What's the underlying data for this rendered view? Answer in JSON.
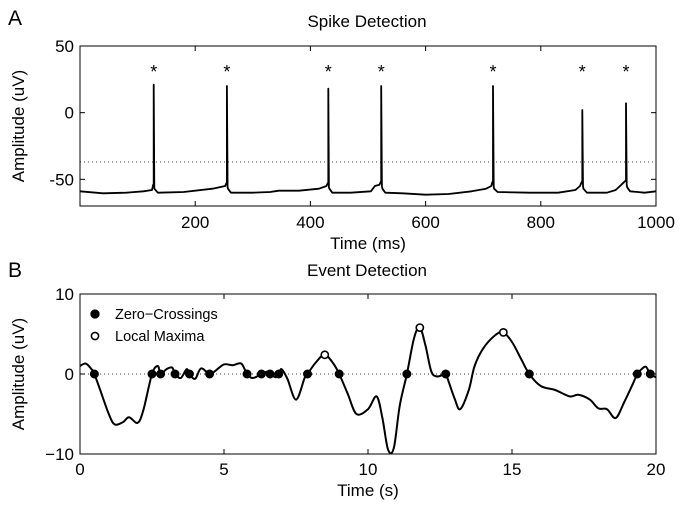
{
  "chart_data": [
    {
      "panel_label": "A",
      "type": "line",
      "title": "Spike Detection",
      "xlabel": "Time (ms)",
      "ylabel": "Amplitude (uV)",
      "xlim": [
        0,
        1000
      ],
      "ylim": [
        -70,
        50
      ],
      "xticks": [
        200,
        400,
        600,
        800,
        1000
      ],
      "yticks": [
        50,
        0,
        -50
      ],
      "threshold": -37,
      "baseline_points": [
        [
          0,
          -59
        ],
        [
          40,
          -60.5
        ],
        [
          80,
          -60
        ],
        [
          110,
          -59
        ],
        [
          125,
          -58
        ],
        [
          128,
          -54
        ],
        [
          129,
          -56
        ],
        [
          135,
          -60
        ],
        [
          180,
          -59.5
        ],
        [
          230,
          -57
        ],
        [
          252,
          -55
        ],
        [
          255,
          -53
        ],
        [
          257,
          -57
        ],
        [
          262,
          -60
        ],
        [
          300,
          -60
        ],
        [
          330,
          -59.5
        ],
        [
          345,
          -58.5
        ],
        [
          380,
          -58.5
        ],
        [
          415,
          -57
        ],
        [
          428,
          -55
        ],
        [
          431,
          -53
        ],
        [
          433,
          -57
        ],
        [
          438,
          -60
        ],
        [
          470,
          -60
        ],
        [
          505,
          -59
        ],
        [
          512,
          -55
        ],
        [
          520,
          -54
        ],
        [
          523,
          -52
        ],
        [
          525,
          -57
        ],
        [
          530,
          -60
        ],
        [
          560,
          -60.5
        ],
        [
          600,
          -61.5
        ],
        [
          640,
          -61
        ],
        [
          680,
          -59
        ],
        [
          705,
          -57
        ],
        [
          714,
          -55
        ],
        [
          717,
          -52
        ],
        [
          719,
          -57
        ],
        [
          725,
          -59.5
        ],
        [
          780,
          -60
        ],
        [
          830,
          -60
        ],
        [
          860,
          -58
        ],
        [
          868,
          -55
        ],
        [
          872,
          -52
        ],
        [
          874,
          -57
        ],
        [
          880,
          -60
        ],
        [
          915,
          -60
        ],
        [
          930,
          -58
        ],
        [
          940,
          -54
        ],
        [
          948,
          -51
        ],
        [
          950,
          -56
        ],
        [
          955,
          -59
        ],
        [
          980,
          -60
        ],
        [
          1000,
          -59
        ]
      ],
      "spikes": [
        {
          "time": 128,
          "peak": 21
        },
        {
          "time": 255,
          "peak": 20
        },
        {
          "time": 431,
          "peak": 18
        },
        {
          "time": 523,
          "peak": 20
        },
        {
          "time": 717,
          "peak": 20
        },
        {
          "time": 872,
          "peak": 2
        },
        {
          "time": 948,
          "peak": 7
        }
      ],
      "spike_marker": "*"
    },
    {
      "panel_label": "B",
      "type": "line",
      "title": "Event Detection",
      "xlabel": "Time (s)",
      "ylabel": "Amplitude (uV)",
      "xlim": [
        0,
        20
      ],
      "ylim": [
        -10,
        10
      ],
      "xticks": [
        0,
        5,
        10,
        15,
        20
      ],
      "yticks": [
        10,
        0,
        -10
      ],
      "legend": {
        "placement": "top-left",
        "entries": [
          "Zero−Crossings",
          "Local Maxima"
        ]
      },
      "signal": [
        [
          0,
          1.0
        ],
        [
          0.2,
          1.3
        ],
        [
          0.4,
          0.6
        ],
        [
          0.5,
          0
        ],
        [
          0.7,
          -2
        ],
        [
          1.0,
          -5
        ],
        [
          1.2,
          -6.3
        ],
        [
          1.5,
          -6.0
        ],
        [
          1.7,
          -5.4
        ],
        [
          2.0,
          -6.1
        ],
        [
          2.2,
          -4.5
        ],
        [
          2.5,
          0
        ],
        [
          2.7,
          1.0
        ],
        [
          2.8,
          0
        ],
        [
          3.0,
          0.6
        ],
        [
          3.2,
          0.8
        ],
        [
          3.3,
          0
        ],
        [
          3.5,
          -0.5
        ],
        [
          3.7,
          0.6
        ],
        [
          3.8,
          0
        ],
        [
          4.0,
          -0.6
        ],
        [
          4.2,
          0.7
        ],
        [
          4.5,
          0
        ],
        [
          4.7,
          0.4
        ],
        [
          5.0,
          1.2
        ],
        [
          5.3,
          1.1
        ],
        [
          5.6,
          1.3
        ],
        [
          5.8,
          0
        ],
        [
          6.0,
          -0.5
        ],
        [
          6.3,
          0
        ],
        [
          6.5,
          0.3
        ],
        [
          6.6,
          0
        ],
        [
          6.8,
          -0.4
        ],
        [
          6.9,
          0
        ],
        [
          7.0,
          0.6
        ],
        [
          7.2,
          -0.6
        ],
        [
          7.5,
          -3.2
        ],
        [
          7.8,
          -0.5
        ],
        [
          7.9,
          0
        ],
        [
          8.2,
          1.5
        ],
        [
          8.5,
          2.4
        ],
        [
          8.8,
          1.3
        ],
        [
          9.0,
          0
        ],
        [
          9.3,
          -2.5
        ],
        [
          9.6,
          -5.0
        ],
        [
          10.0,
          -4.4
        ],
        [
          10.3,
          -2.8
        ],
        [
          10.5,
          -5.5
        ],
        [
          10.7,
          -9.5
        ],
        [
          10.9,
          -9.2
        ],
        [
          11.1,
          -4.0
        ],
        [
          11.35,
          0
        ],
        [
          11.6,
          4.5
        ],
        [
          11.8,
          5.8
        ],
        [
          12.0,
          3.5
        ],
        [
          12.2,
          0.3
        ],
        [
          12.4,
          -0.3
        ],
        [
          12.6,
          -0.1
        ],
        [
          12.7,
          0
        ],
        [
          13.0,
          -3.0
        ],
        [
          13.2,
          -4.4
        ],
        [
          13.5,
          -2.0
        ],
        [
          13.7,
          1.0
        ],
        [
          14.0,
          3.2
        ],
        [
          14.4,
          4.8
        ],
        [
          14.7,
          5.2
        ],
        [
          15.0,
          4.0
        ],
        [
          15.3,
          2.0
        ],
        [
          15.6,
          0
        ],
        [
          16.0,
          -1.5
        ],
        [
          16.5,
          -2.0
        ],
        [
          17.0,
          -2.8
        ],
        [
          17.3,
          -2.6
        ],
        [
          17.7,
          -3.2
        ],
        [
          18.0,
          -4.3
        ],
        [
          18.3,
          -4.4
        ],
        [
          18.6,
          -5.5
        ],
        [
          18.9,
          -3.5
        ],
        [
          19.2,
          -1.2
        ],
        [
          19.35,
          0
        ],
        [
          19.5,
          0.6
        ],
        [
          19.65,
          0.9
        ],
        [
          19.8,
          0
        ],
        [
          20.0,
          -0.4
        ]
      ],
      "zero_crossings": [
        0.5,
        2.5,
        2.8,
        3.3,
        3.8,
        4.5,
        5.8,
        6.3,
        6.6,
        6.9,
        7.9,
        9.0,
        11.35,
        12.7,
        15.6,
        19.35,
        19.8
      ],
      "local_maxima": [
        [
          8.5,
          2.4
        ],
        [
          11.8,
          5.8
        ],
        [
          14.7,
          5.2
        ]
      ]
    }
  ]
}
